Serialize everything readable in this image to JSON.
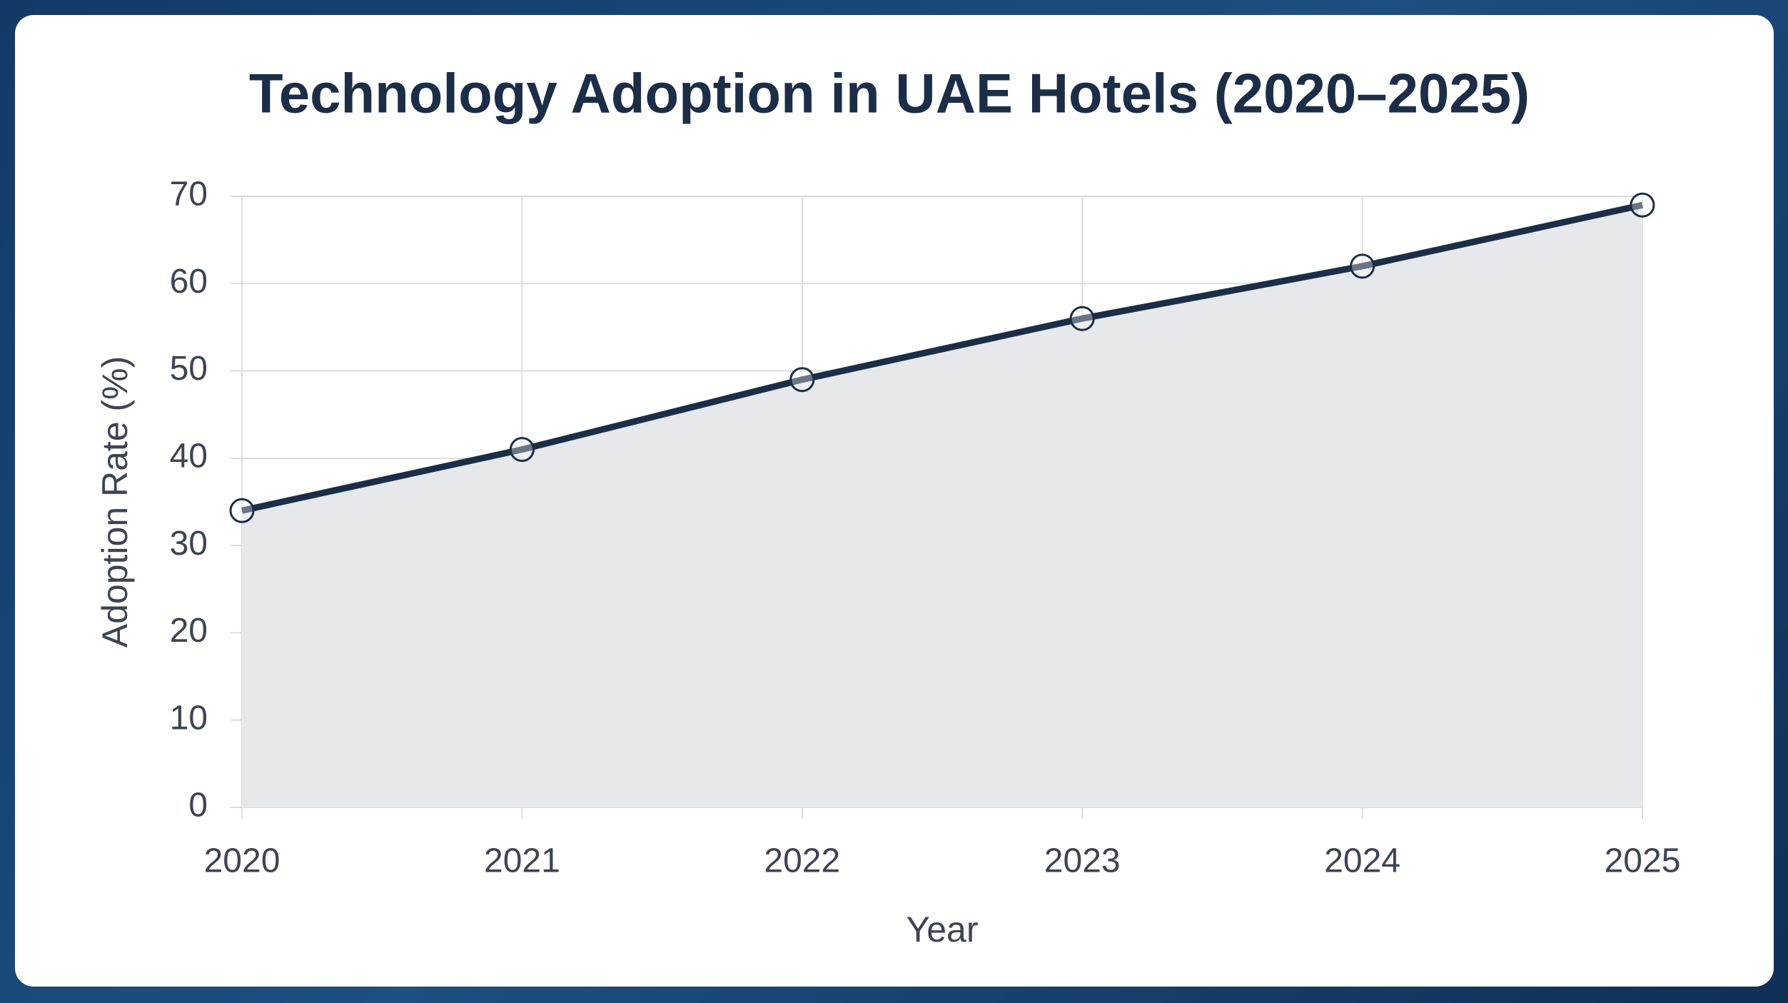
{
  "chart_data": {
    "type": "line",
    "title": "Technology Adoption in UAE Hotels (2020–2025)",
    "x_label": "Year",
    "y_label": "Adoption Rate (%)",
    "categories": [
      "2020",
      "2021",
      "2022",
      "2023",
      "2024",
      "2025"
    ],
    "values": [
      34,
      41,
      49,
      56,
      62,
      69
    ],
    "color": "#1b2d47",
    "fill": "#e6e8ec",
    "ylim": [
      0,
      70
    ],
    "yticks": [
      0,
      10,
      20,
      30,
      40,
      50,
      60,
      70
    ],
    "grid": true
  }
}
